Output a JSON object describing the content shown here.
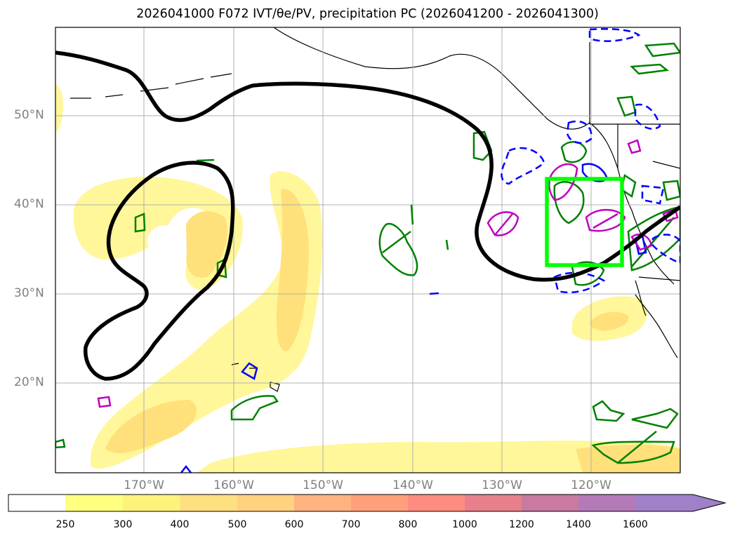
{
  "title": "2026041000 F072 IVT/θe/PV, precipitation PC (2026041200 - 2026041300)",
  "latitude_labels": [
    "50°N",
    "40°N",
    "30°N",
    "20°N"
  ],
  "longitude_labels": [
    "170°W",
    "160°W",
    "150°W",
    "140°W",
    "130°W",
    "120°W"
  ],
  "colorbar": {
    "ticks": [
      "250",
      "300",
      "400",
      "500",
      "600",
      "700",
      "800",
      "1000",
      "1200",
      "1400",
      "1600"
    ],
    "colors": [
      "#ffffff",
      "#ffff80",
      "#fff27a",
      "#ffe080",
      "#ffd280",
      "#ffb380",
      "#ffa07a",
      "#ff8c80",
      "#e8808c",
      "#c87aa0",
      "#b47ab8",
      "#a080c8"
    ],
    "extend": "max"
  },
  "map_colors": {
    "ivt_fill_1": "#fff799",
    "ivt_fill_2": "#ffe07a",
    "pv_contour": "#000000",
    "theta_e_positive": "#008000",
    "theta_e_negative_dashed": "#0000ff",
    "precip_pc": "#c000c0",
    "focus_box": "#00ff00"
  }
}
